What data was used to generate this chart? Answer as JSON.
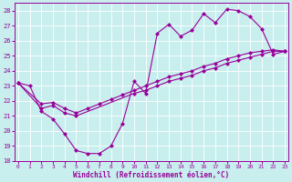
{
  "bg_color": "#c8eeee",
  "line_color": "#990099",
  "grid_color": "#ffffff",
  "xlim": [
    -0.3,
    23.3
  ],
  "ylim": [
    18,
    28.5
  ],
  "xticks": [
    0,
    1,
    2,
    3,
    4,
    5,
    6,
    7,
    8,
    9,
    10,
    11,
    12,
    13,
    14,
    15,
    16,
    17,
    18,
    19,
    20,
    21,
    22,
    23
  ],
  "yticks": [
    18,
    19,
    20,
    21,
    22,
    23,
    24,
    25,
    26,
    27,
    28
  ],
  "xlabel": "Windchill (Refroidissement éolien,°C)",
  "curve1_x": [
    0,
    1,
    2,
    3,
    4,
    5,
    6,
    7,
    8,
    9,
    10,
    11,
    12,
    13,
    14,
    15,
    16,
    17,
    18,
    19,
    20,
    21,
    22,
    23
  ],
  "curve1_y": [
    23.2,
    23.0,
    21.3,
    20.8,
    19.8,
    18.7,
    18.5,
    18.5,
    19.0,
    20.5,
    23.3,
    22.5,
    26.5,
    27.1,
    26.3,
    26.7,
    27.8,
    27.2,
    28.1,
    28.0,
    27.6,
    26.8,
    25.1,
    25.3
  ],
  "curve2_x": [
    0,
    2,
    3,
    4,
    5,
    6,
    7,
    8,
    9,
    10,
    11,
    12,
    13,
    14,
    15,
    16,
    17,
    18,
    19,
    20,
    21,
    22,
    23
  ],
  "curve2_y": [
    23.2,
    21.8,
    21.9,
    21.5,
    21.2,
    21.5,
    21.8,
    22.1,
    22.4,
    22.7,
    23.0,
    23.3,
    23.6,
    23.8,
    24.0,
    24.3,
    24.5,
    24.8,
    25.0,
    25.2,
    25.3,
    25.4,
    25.3
  ],
  "curve3_x": [
    0,
    2,
    3,
    4,
    5,
    10,
    11,
    12,
    13,
    14,
    15,
    16,
    17,
    18,
    19,
    20,
    21,
    22,
    23
  ],
  "curve3_y": [
    23.2,
    21.5,
    21.7,
    21.2,
    21.0,
    22.5,
    22.7,
    23.0,
    23.3,
    23.5,
    23.7,
    24.0,
    24.2,
    24.5,
    24.7,
    24.9,
    25.1,
    25.3,
    25.3
  ]
}
